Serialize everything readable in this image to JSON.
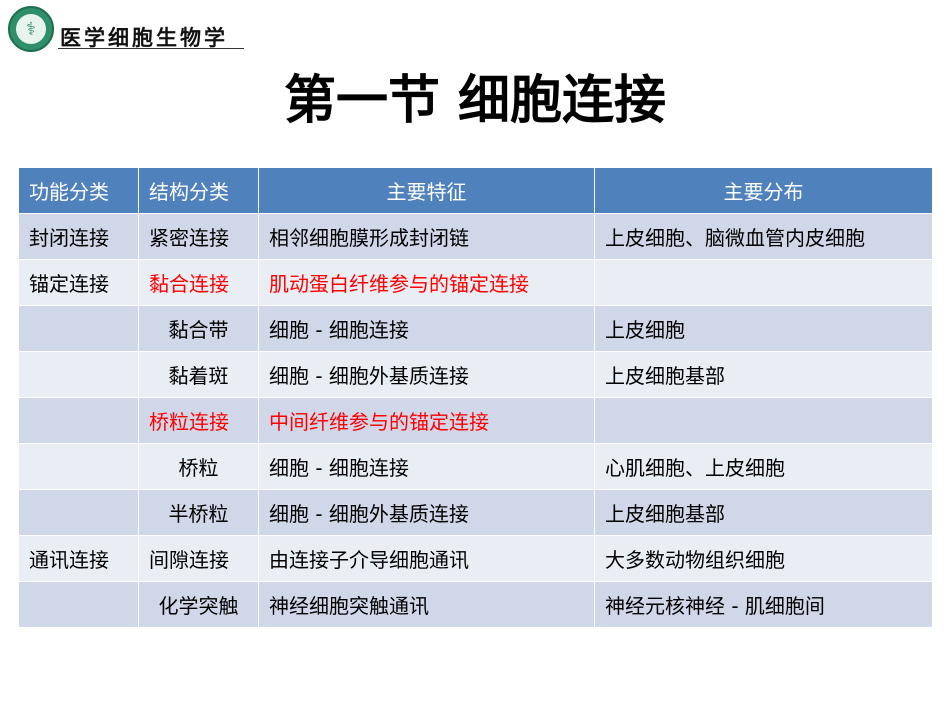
{
  "header": {
    "brand": "医学细胞生物学",
    "logo": "university-seal-logo"
  },
  "title": "第一节  细胞连接",
  "table": {
    "columns": [
      "功能分类",
      "结构分类",
      "主要特征",
      "主要分布"
    ],
    "rows": [
      {
        "cells": [
          "封闭连接",
          "紧密连接",
          "相邻细胞膜形成封闭链",
          "上皮细胞、脑微血管内皮细胞"
        ],
        "highlight": false
      },
      {
        "cells": [
          "锚定连接",
          "黏合连接",
          "肌动蛋白纤维参与的锚定连接",
          ""
        ],
        "highlight": true
      },
      {
        "cells": [
          "",
          "黏合带",
          "细胞 - 细胞连接",
          "上皮细胞"
        ],
        "highlight": false
      },
      {
        "cells": [
          "",
          "黏着斑",
          "细胞 - 细胞外基质连接",
          "上皮细胞基部"
        ],
        "highlight": false
      },
      {
        "cells": [
          "",
          "桥粒连接",
          "中间纤维参与的锚定连接",
          ""
        ],
        "highlight": true
      },
      {
        "cells": [
          "",
          "桥粒",
          "细胞 - 细胞连接",
          "心肌细胞、上皮细胞"
        ],
        "highlight": false
      },
      {
        "cells": [
          "",
          "半桥粒",
          "细胞 - 细胞外基质连接",
          "上皮细胞基部"
        ],
        "highlight": false
      },
      {
        "cells": [
          "通讯连接",
          "间隙连接",
          "由连接子介导细胞通讯",
          "大多数动物组织细胞"
        ],
        "highlight": false
      },
      {
        "cells": [
          "",
          "化学突触",
          "神经细胞突触通讯",
          "神经元核神经 - 肌细胞间"
        ],
        "highlight": false
      }
    ]
  },
  "colors": {
    "header_bg": "#4f81bd",
    "row_dark": "#cfd7e8",
    "row_light": "#e9edf4",
    "highlight_text": "#ff0000"
  }
}
